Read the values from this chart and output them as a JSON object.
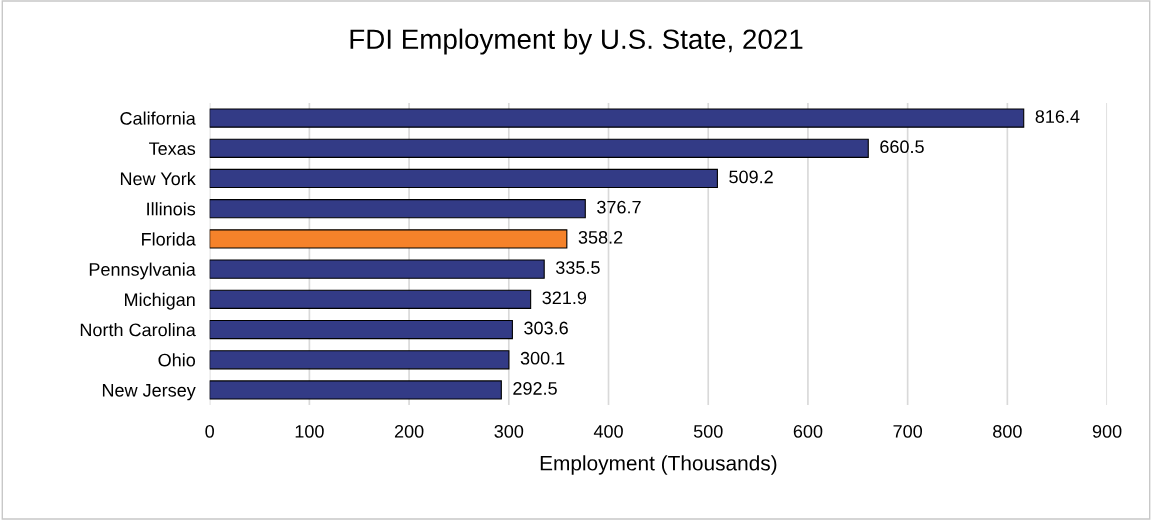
{
  "chart_data": {
    "type": "bar",
    "orientation": "horizontal",
    "title": "FDI Employment by U.S. State, 2021",
    "xlabel": "Employment (Thousands)",
    "categories": [
      "California",
      "Texas",
      "New York",
      "Illinois",
      "Florida",
      "Pennsylvania",
      "Michigan",
      "North Carolina",
      "Ohio",
      "New Jersey"
    ],
    "values": [
      816.4,
      660.5,
      509.2,
      376.7,
      358.2,
      335.5,
      321.9,
      303.6,
      300.1,
      292.5
    ],
    "colors": [
      "#333b86",
      "#333b86",
      "#333b86",
      "#333b86",
      "#f5822a",
      "#333b86",
      "#333b86",
      "#333b86",
      "#333b86",
      "#333b86"
    ],
    "xlim": [
      0,
      900
    ],
    "xticks": [
      0,
      100,
      200,
      300,
      400,
      500,
      600,
      700,
      800,
      900
    ],
    "grid": "x",
    "data_labels": true
  }
}
